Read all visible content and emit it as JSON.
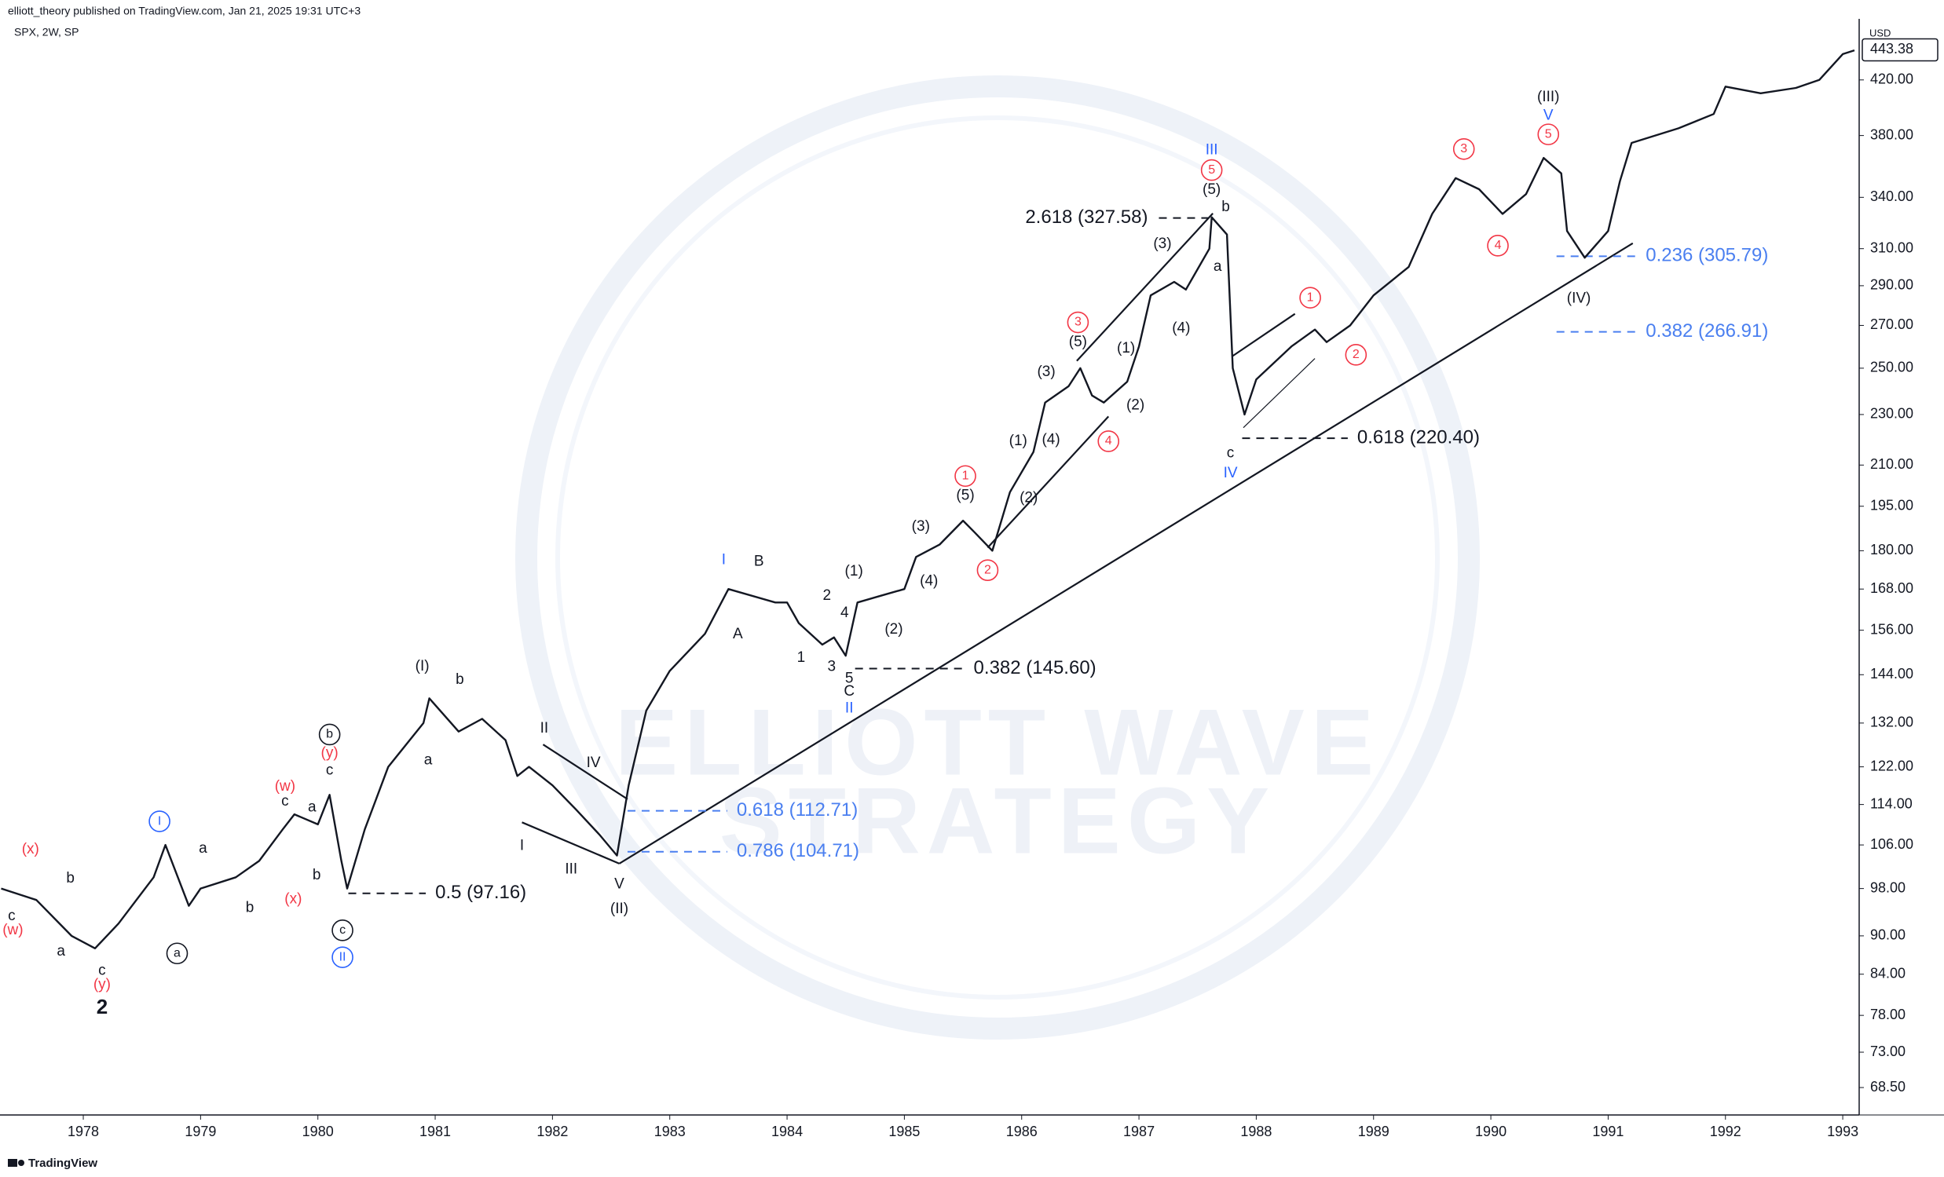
{
  "header": {
    "publisher": "elliott_theory published on TradingView.com, Jan 21, 2025 19:31 UTC+3",
    "footer": "TradingView"
  },
  "chart_data": {
    "type": "line",
    "title": "SPX, 2W, SP",
    "currency": "USD",
    "last_price": 443.38,
    "color": "#131722",
    "log_scale": true,
    "watermark": [
      "ELLIOTT WAVE",
      "STRATEGY"
    ],
    "xlim": [
      1977.29,
      1993.14
    ],
    "xticks": [
      1978,
      1979,
      1980,
      1981,
      1982,
      1983,
      1984,
      1985,
      1986,
      1987,
      1988,
      1989,
      1990,
      1991,
      1992,
      1993
    ],
    "ylim": [
      65.2,
      468.8
    ],
    "yticks": [
      {
        "value": 68.5,
        "label": "68.50"
      },
      {
        "value": 73,
        "label": "73.00"
      },
      {
        "value": 78,
        "label": "78.00"
      },
      {
        "value": 84,
        "label": "84.00"
      },
      {
        "value": 90,
        "label": "90.00"
      },
      {
        "value": 98,
        "label": "98.00"
      },
      {
        "value": 106,
        "label": "106.00"
      },
      {
        "value": 114,
        "label": "114.00"
      },
      {
        "value": 122,
        "label": "122.00"
      },
      {
        "value": 132,
        "label": "132.00"
      },
      {
        "value": 144,
        "label": "144.00"
      },
      {
        "value": 156,
        "label": "156.00"
      },
      {
        "value": 168,
        "label": "168.00"
      },
      {
        "value": 180,
        "label": "180.00"
      },
      {
        "value": 195,
        "label": "195.00"
      },
      {
        "value": 210,
        "label": "210.00"
      },
      {
        "value": 230,
        "label": "230.00"
      },
      {
        "value": 250,
        "label": "250.00"
      },
      {
        "value": 270,
        "label": "270.00"
      },
      {
        "value": 290,
        "label": "290.00"
      },
      {
        "value": 310,
        "label": "310.00"
      },
      {
        "value": 340,
        "label": "340.00"
      },
      {
        "value": 380,
        "label": "380.00"
      },
      {
        "value": 420,
        "label": "420.00"
      }
    ],
    "x": [
      1977.3,
      1977.6,
      1977.9,
      1978.1,
      1978.3,
      1978.6,
      1978.7,
      1978.9,
      1979.0,
      1979.3,
      1979.5,
      1979.7,
      1979.8,
      1980.0,
      1980.1,
      1980.2,
      1980.25,
      1980.4,
      1980.6,
      1980.9,
      1980.95,
      1981.2,
      1981.4,
      1981.6,
      1981.7,
      1981.8,
      1982.0,
      1982.2,
      1982.4,
      1982.55,
      1982.65,
      1982.8,
      1983.0,
      1983.3,
      1983.5,
      1983.9,
      1984.0,
      1984.1,
      1984.3,
      1984.4,
      1984.5,
      1984.6,
      1984.8,
      1985.0,
      1985.1,
      1985.3,
      1985.5,
      1985.6,
      1985.75,
      1985.9,
      1986.1,
      1986.2,
      1986.4,
      1986.5,
      1986.6,
      1986.7,
      1986.9,
      1987.0,
      1987.1,
      1987.3,
      1987.4,
      1987.6,
      1987.62,
      1987.75,
      1987.8,
      1987.9,
      1988.0,
      1988.3,
      1988.5,
      1988.6,
      1988.8,
      1989.0,
      1989.3,
      1989.5,
      1989.7,
      1989.9,
      1990.1,
      1990.3,
      1990.45,
      1990.6,
      1990.65,
      1990.8,
      1991.0,
      1991.1,
      1991.2,
      1991.6,
      1991.9,
      1992.0,
      1992.3,
      1992.6,
      1992.8,
      1993.0,
      1993.1
    ],
    "values": [
      98,
      96,
      90,
      88,
      92,
      100,
      106,
      95,
      98,
      100,
      103,
      109,
      112,
      110,
      116,
      103,
      98,
      109,
      122,
      132,
      138,
      130,
      133,
      128,
      120,
      122,
      118,
      113,
      108,
      104,
      118,
      135,
      145,
      155,
      168,
      164,
      164,
      158,
      152,
      154,
      149,
      164,
      166,
      168,
      178,
      182,
      190,
      186,
      180,
      200,
      215,
      235,
      242,
      250,
      238,
      235,
      244,
      260,
      285,
      292,
      288,
      310,
      328,
      318,
      250,
      230,
      245,
      260,
      268,
      262,
      270,
      285,
      300,
      330,
      352,
      345,
      330,
      342,
      365,
      355,
      320,
      305,
      320,
      350,
      375,
      385,
      395,
      415,
      410,
      414,
      420,
      440,
      443
    ],
    "annotations": [
      {
        "text": "2",
        "x": 1978.16,
        "y": 79.0,
        "color": "#131722",
        "bold": true
      },
      {
        "text": "(y)",
        "x": 1978.16,
        "y": 82.4,
        "color": "#f23645"
      },
      {
        "text": "c",
        "x": 1978.16,
        "y": 84.5,
        "color": "#131722"
      },
      {
        "text": "a",
        "x": 1977.81,
        "y": 87.5,
        "color": "#131722"
      },
      {
        "text": "b",
        "x": 1977.89,
        "y": 99.8,
        "color": "#131722"
      },
      {
        "text": "c",
        "x": 1977.39,
        "y": 93.2,
        "color": "#131722"
      },
      {
        "text": "(w)",
        "x": 1977.4,
        "y": 90.9,
        "color": "#f23645"
      },
      {
        "text": "(x)",
        "x": 1977.55,
        "y": 105.1,
        "color": "#f23645"
      },
      {
        "text": "I",
        "x": 1978.65,
        "y": 110.6,
        "color": "#2962ff",
        "circled": true
      },
      {
        "text": "a",
        "x": 1978.8,
        "y": 87.2,
        "color": "#131722",
        "circled": true
      },
      {
        "text": "a",
        "x": 1979.02,
        "y": 105.3,
        "color": "#131722"
      },
      {
        "text": "b",
        "x": 1979.42,
        "y": 94.6,
        "color": "#131722"
      },
      {
        "text": "(x)",
        "x": 1979.79,
        "y": 96.1,
        "color": "#f23645"
      },
      {
        "text": "(w)",
        "x": 1979.72,
        "y": 117.7,
        "color": "#f23645"
      },
      {
        "text": "c",
        "x": 1979.72,
        "y": 114.6,
        "color": "#131722"
      },
      {
        "text": "a",
        "x": 1979.95,
        "y": 113.4,
        "color": "#131722"
      },
      {
        "text": "b",
        "x": 1979.99,
        "y": 100.3,
        "color": "#131722"
      },
      {
        "text": "b",
        "x": 1980.1,
        "y": 129.3,
        "color": "#131722",
        "circled": true
      },
      {
        "text": "(y)",
        "x": 1980.1,
        "y": 125.0,
        "color": "#f23645"
      },
      {
        "text": "c",
        "x": 1980.1,
        "y": 121.2,
        "color": "#131722"
      },
      {
        "text": "c",
        "x": 1980.21,
        "y": 90.9,
        "color": "#131722",
        "circled": true
      },
      {
        "text": "II",
        "x": 1980.21,
        "y": 86.6,
        "color": "#2962ff",
        "circled": true
      },
      {
        "text": "(I)",
        "x": 1980.89,
        "y": 146.1,
        "color": "#131722"
      },
      {
        "text": "b",
        "x": 1981.21,
        "y": 142.6,
        "color": "#131722"
      },
      {
        "text": "a",
        "x": 1980.94,
        "y": 123.4,
        "color": "#131722"
      },
      {
        "text": "II",
        "x": 1981.93,
        "y": 130.7,
        "color": "#131722"
      },
      {
        "text": "IV",
        "x": 1982.35,
        "y": 122.8,
        "color": "#131722"
      },
      {
        "text": "I",
        "x": 1981.74,
        "y": 105.8,
        "color": "#131722"
      },
      {
        "text": "III",
        "x": 1982.16,
        "y": 101.4,
        "color": "#131722"
      },
      {
        "text": "V",
        "x": 1982.57,
        "y": 98.7,
        "color": "#131722"
      },
      {
        "text": "(II)",
        "x": 1982.57,
        "y": 94.4,
        "color": "#131722"
      },
      {
        "text": "I",
        "x": 1983.46,
        "y": 176.9,
        "color": "#2962ff"
      },
      {
        "text": "B",
        "x": 1983.76,
        "y": 176.5,
        "color": "#131722"
      },
      {
        "text": "A",
        "x": 1983.58,
        "y": 154.8,
        "color": "#131722"
      },
      {
        "text": "2",
        "x": 1984.34,
        "y": 165.9,
        "color": "#131722"
      },
      {
        "text": "4",
        "x": 1984.49,
        "y": 160.8,
        "color": "#131722"
      },
      {
        "text": "1",
        "x": 1984.12,
        "y": 148.4,
        "color": "#131722"
      },
      {
        "text": "3",
        "x": 1984.38,
        "y": 146.0,
        "color": "#131722"
      },
      {
        "text": "5",
        "x": 1984.53,
        "y": 142.9,
        "color": "#131722"
      },
      {
        "text": "C",
        "x": 1984.53,
        "y": 139.7,
        "color": "#131722"
      },
      {
        "text": "II",
        "x": 1984.53,
        "y": 135.5,
        "color": "#2962ff"
      },
      {
        "text": "(1)",
        "x": 1984.57,
        "y": 173.4,
        "color": "#131722"
      },
      {
        "text": "(2)",
        "x": 1984.91,
        "y": 156.2,
        "color": "#131722"
      },
      {
        "text": "(3)",
        "x": 1985.14,
        "y": 187.9,
        "color": "#131722"
      },
      {
        "text": "(4)",
        "x": 1985.21,
        "y": 170.3,
        "color": "#131722"
      },
      {
        "text": "1",
        "x": 1985.52,
        "y": 205.9,
        "color": "#f23645",
        "circled": true
      },
      {
        "text": "(5)",
        "x": 1985.52,
        "y": 198.7,
        "color": "#131722"
      },
      {
        "text": "2",
        "x": 1985.71,
        "y": 173.8,
        "color": "#f23645",
        "circled": true
      },
      {
        "text": "(1)",
        "x": 1985.97,
        "y": 219.2,
        "color": "#131722"
      },
      {
        "text": "(2)",
        "x": 1986.06,
        "y": 197.8,
        "color": "#131722"
      },
      {
        "text": "(3)",
        "x": 1986.21,
        "y": 248.3,
        "color": "#131722"
      },
      {
        "text": "(4)",
        "x": 1986.25,
        "y": 219.7,
        "color": "#131722"
      },
      {
        "text": "3",
        "x": 1986.48,
        "y": 271.5,
        "color": "#f23645",
        "circled": true
      },
      {
        "text": "(5)",
        "x": 1986.48,
        "y": 261.9,
        "color": "#131722"
      },
      {
        "text": "4",
        "x": 1986.74,
        "y": 219.2,
        "color": "#f23645",
        "circled": true
      },
      {
        "text": "(1)",
        "x": 1986.89,
        "y": 259.0,
        "color": "#131722"
      },
      {
        "text": "(2)",
        "x": 1986.97,
        "y": 233.8,
        "color": "#131722"
      },
      {
        "text": "(3)",
        "x": 1987.2,
        "y": 312.4,
        "color": "#131722"
      },
      {
        "text": "(4)",
        "x": 1987.36,
        "y": 268.5,
        "color": "#131722"
      },
      {
        "text": "III",
        "x": 1987.62,
        "y": 370,
        "color": "#2962ff"
      },
      {
        "text": "5",
        "x": 1987.62,
        "y": 357.1,
        "color": "#f23645",
        "circled": true
      },
      {
        "text": "(5)",
        "x": 1987.62,
        "y": 344.6,
        "color": "#131722"
      },
      {
        "text": "b",
        "x": 1987.74,
        "y": 333.9,
        "color": "#131722"
      },
      {
        "text": "a",
        "x": 1987.67,
        "y": 300.0,
        "color": "#131722"
      },
      {
        "text": "c",
        "x": 1987.78,
        "y": 214.4,
        "color": "#131722"
      },
      {
        "text": "IV",
        "x": 1987.78,
        "y": 206.9,
        "color": "#2962ff"
      },
      {
        "text": "1",
        "x": 1988.46,
        "y": 283.8,
        "color": "#f23645",
        "circled": true
      },
      {
        "text": "2",
        "x": 1988.85,
        "y": 256.1,
        "color": "#f23645",
        "circled": true
      },
      {
        "text": "3",
        "x": 1989.77,
        "y": 370.9,
        "color": "#f23645",
        "circled": true
      },
      {
        "text": "4",
        "x": 1990.06,
        "y": 311.7,
        "color": "#f23645",
        "circled": true
      },
      {
        "text": "(III)",
        "x": 1990.49,
        "y": 407.1,
        "color": "#131722"
      },
      {
        "text": "V",
        "x": 1990.49,
        "y": 393.7,
        "color": "#2962ff"
      },
      {
        "text": "5",
        "x": 1990.49,
        "y": 380.8,
        "color": "#f23645",
        "circled": true
      },
      {
        "text": "(IV)",
        "x": 1990.75,
        "y": 283.2,
        "color": "#131722"
      }
    ],
    "fib_levels": [
      {
        "label": "2.618 (327.58)",
        "value": 327.58,
        "color": "#131722",
        "x": [
          1987.17,
          1987.62
        ],
        "label_side": "left"
      },
      {
        "label": "0.5 (97.16)",
        "value": 97.16,
        "color": "#131722",
        "x": [
          1980.26,
          1980.92
        ],
        "label_side": "right"
      },
      {
        "label": "0.618 (112.71)",
        "value": 112.71,
        "color": "#4a7ff0",
        "x": [
          1982.64,
          1983.49
        ],
        "label_side": "right"
      },
      {
        "label": "0.786 (104.71)",
        "value": 104.71,
        "color": "#4a7ff0",
        "x": [
          1982.64,
          1983.49
        ],
        "label_side": "right"
      },
      {
        "label": "0.382 (145.60)",
        "value": 145.6,
        "color": "#131722",
        "x": [
          1984.58,
          1985.51
        ],
        "label_side": "right"
      },
      {
        "label": "0.618 (220.40)",
        "value": 220.4,
        "color": "#131722",
        "x": [
          1987.88,
          1988.78
        ],
        "label_side": "right"
      },
      {
        "label": "0.236 (305.79)",
        "value": 305.79,
        "color": "#4a7ff0",
        "x": [
          1990.56,
          1991.24
        ],
        "label_side": "right"
      },
      {
        "label": "0.382 (266.91)",
        "value": 266.91,
        "color": "#4a7ff0",
        "x": [
          1990.56,
          1991.24
        ],
        "label_side": "right"
      }
    ],
    "trendlines": [
      {
        "x": [
          1982.57,
          1991.21
        ],
        "y": [
          102.5,
          313.0
        ]
      },
      {
        "x": [
          1981.92,
          1982.64
        ],
        "y": [
          127.0,
          115.1
        ]
      },
      {
        "x": [
          1981.74,
          1982.57
        ],
        "y": [
          110.4,
          102.5
        ]
      },
      {
        "x": [
          1985.71,
          1986.74
        ],
        "y": [
          181.0,
          229.2
        ]
      },
      {
        "x": [
          1986.47,
          1987.63
        ],
        "y": [
          253.3,
          330.3
        ]
      },
      {
        "x": [
          1987.8,
          1988.33
        ],
        "y": [
          255.6,
          275.7
        ]
      },
      {
        "x": [
          1987.89,
          1988.5
        ],
        "y": [
          224.6,
          254.4
        ]
      }
    ]
  }
}
